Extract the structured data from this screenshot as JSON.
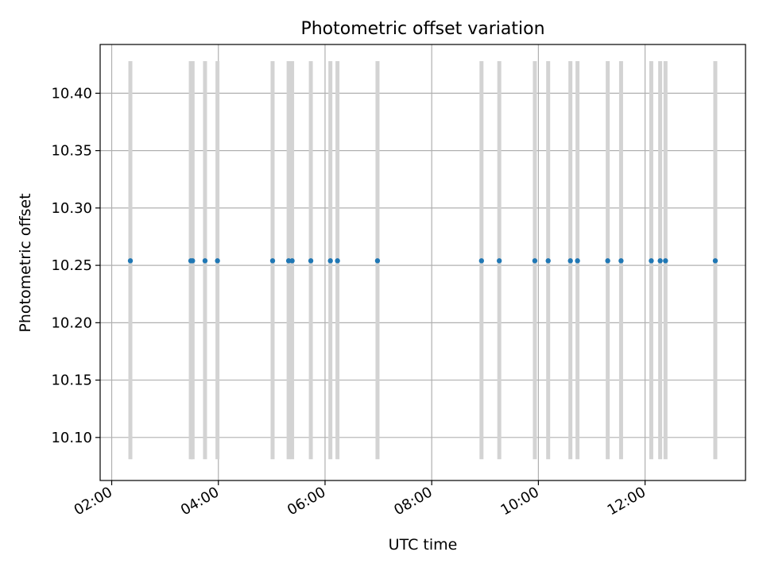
{
  "chart_data": {
    "type": "scatter",
    "title": "Photometric offset variation",
    "xlabel": "UTC time",
    "ylabel": "Photometric offset",
    "x_axis_type": "time",
    "xlim": [
      "01:47",
      "13:53"
    ],
    "ylim": [
      10.0625,
      10.4425
    ],
    "grid": true,
    "x_ticks": [
      "02:00",
      "04:00",
      "06:00",
      "08:00",
      "10:00",
      "12:00"
    ],
    "y_ticks": [
      "10.10",
      "10.15",
      "10.20",
      "10.25",
      "10.30",
      "10.35",
      "10.40"
    ],
    "error_bar_range": [
      10.081,
      10.428
    ],
    "colors": {
      "points": "#1f77b4",
      "error_bars": "#d3d3d3",
      "grid": "#b0b0b0"
    },
    "series": [
      {
        "points": [
          {
            "x": "02:21",
            "y": 10.254
          },
          {
            "x": "03:29",
            "y": 10.254
          },
          {
            "x": "03:31",
            "y": 10.254
          },
          {
            "x": "03:45",
            "y": 10.254
          },
          {
            "x": "03:59",
            "y": 10.254
          },
          {
            "x": "05:01",
            "y": 10.254
          },
          {
            "x": "05:19",
            "y": 10.254
          },
          {
            "x": "05:23",
            "y": 10.254
          },
          {
            "x": "05:44",
            "y": 10.254
          },
          {
            "x": "06:06",
            "y": 10.254
          },
          {
            "x": "06:14",
            "y": 10.254
          },
          {
            "x": "06:59",
            "y": 10.254
          },
          {
            "x": "08:56",
            "y": 10.254
          },
          {
            "x": "09:16",
            "y": 10.254
          },
          {
            "x": "09:56",
            "y": 10.254
          },
          {
            "x": "10:11",
            "y": 10.254
          },
          {
            "x": "10:36",
            "y": 10.254
          },
          {
            "x": "10:44",
            "y": 10.254
          },
          {
            "x": "11:18",
            "y": 10.254
          },
          {
            "x": "11:33",
            "y": 10.254
          },
          {
            "x": "12:07",
            "y": 10.254
          },
          {
            "x": "12:17",
            "y": 10.254
          },
          {
            "x": "12:23",
            "y": 10.254
          },
          {
            "x": "13:19",
            "y": 10.254
          }
        ]
      }
    ]
  }
}
